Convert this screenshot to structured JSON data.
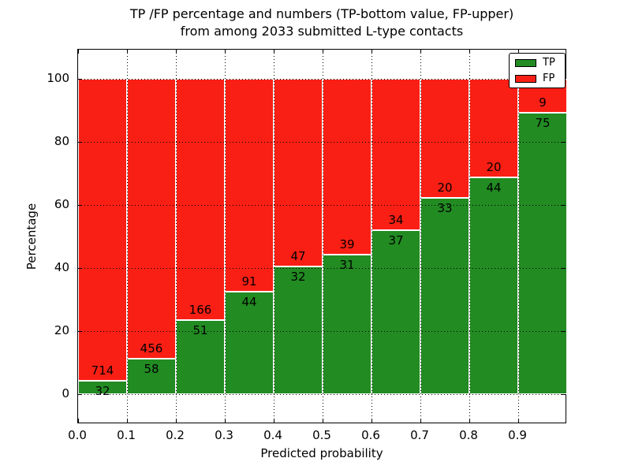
{
  "figure_title": {
    "line1": "TP /FP percentage and numbers (TP-bottom value, FP-upper)",
    "line2": "from among 2033 submitted L-type contacts"
  },
  "chart_data": {
    "type": "bar",
    "variant": "stacked-percentage",
    "title": "TP /FP percentage and numbers (TP-bottom value, FP-upper)\nfrom among 2033 submitted L-type contacts",
    "title_lines": [
      "TP /FP percentage and numbers (TP-bottom value, FP-upper)",
      "from among 2033 submitted L-type contacts"
    ],
    "xlabel": "Predicted probability",
    "ylabel": "Percentage",
    "total_contacts": 2033,
    "categories": [
      0.0,
      0.1,
      0.2,
      0.3,
      0.4,
      0.5,
      0.6,
      0.7,
      0.8,
      0.9
    ],
    "bin_width": 0.1,
    "xtick_labels": [
      "0.0",
      "0.1",
      "0.2",
      "0.3",
      "0.4",
      "0.5",
      "0.6",
      "0.7",
      "0.8",
      "0.9"
    ],
    "yticks": [
      0,
      20,
      40,
      60,
      80,
      100
    ],
    "ytick_labels": [
      "0",
      "20",
      "40",
      "60",
      "80",
      "100"
    ],
    "xlim": [
      0.0,
      1.0
    ],
    "ylim": [
      -10,
      110
    ],
    "grid": true,
    "grid_style": "dotted",
    "series": [
      {
        "name": "TP",
        "color": "#228B22",
        "position": "bottom",
        "values": [
          32,
          58,
          51,
          44,
          32,
          31,
          37,
          33,
          44,
          75
        ]
      },
      {
        "name": "FP",
        "color": "#FA1F14",
        "position": "top",
        "values": [
          714,
          456,
          166,
          91,
          47,
          39,
          34,
          20,
          20,
          9
        ]
      }
    ],
    "tp_percentages": [
      4.3,
      11.3,
      23.5,
      32.6,
      40.5,
      44.3,
      52.1,
      62.3,
      68.8,
      89.3
    ],
    "legend": {
      "position": "upper right",
      "entries": [
        {
          "label": "TP",
          "color": "#228B22"
        },
        {
          "label": "FP",
          "color": "#FA1F14"
        }
      ]
    }
  }
}
